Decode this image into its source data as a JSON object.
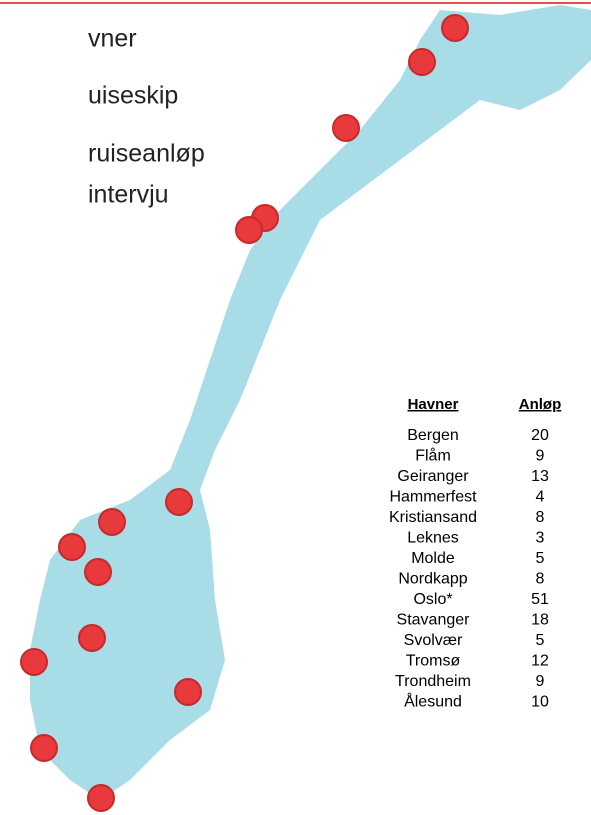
{
  "bullets": [
    "vner",
    "uiseskip",
    "ruiseanløp",
    "intervju"
  ],
  "table": {
    "header": [
      "Havner",
      "Anløp"
    ],
    "rows": [
      [
        "Bergen",
        20
      ],
      [
        "Flåm",
        9
      ],
      [
        "Geiranger",
        13
      ],
      [
        "Hammerfest",
        4
      ],
      [
        "Kristiansand",
        8
      ],
      [
        "Leknes",
        3
      ],
      [
        "Molde",
        5
      ],
      [
        "Nordkapp",
        8
      ],
      [
        "Oslo*",
        51
      ],
      [
        "Stavanger",
        18
      ],
      [
        "Svolvær",
        5
      ],
      [
        "Tromsø",
        12
      ],
      [
        "Trondheim",
        9
      ],
      [
        "Ålesund",
        10
      ]
    ]
  }
}
